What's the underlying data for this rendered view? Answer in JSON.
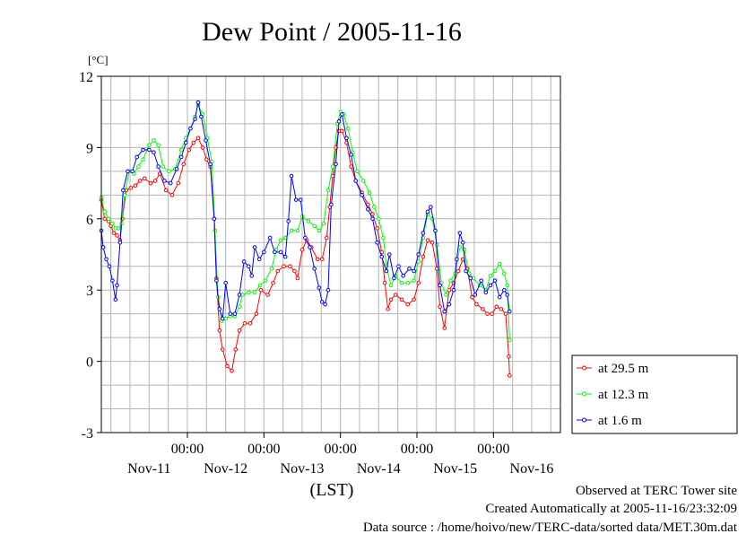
{
  "chart_data": {
    "type": "line",
    "title": "Dew Point / 2005-11-16",
    "ylabel": "[°C]",
    "xlabel": "(LST)",
    "ylim": [
      -3,
      12
    ],
    "yticks": [
      "12",
      "9",
      "6",
      "3",
      "0",
      "-3"
    ],
    "xtime_labels": [
      "00:00",
      "00:00",
      "00:00",
      "00:00",
      "00:00"
    ],
    "xday_labels": [
      "Nov-11",
      "Nov-12",
      "Nov-13",
      "Nov-14",
      "Nov-15",
      "Nov-16"
    ],
    "x_unit": "day offset from Nov-11 00:00 LST",
    "xlim": [
      -0.125,
      5.875
    ],
    "grid": true,
    "legend_position": "bottom-right, outside plot",
    "series": [
      {
        "name": "at 29.5 m",
        "color": "#ff0000",
        "points": [
          [
            -0.125,
            6.8
          ],
          [
            -0.08,
            6.0
          ],
          [
            -0.03,
            5.9
          ],
          [
            0.0,
            5.7
          ],
          [
            0.04,
            5.4
          ],
          [
            0.08,
            5.3
          ],
          [
            0.12,
            5.1
          ],
          [
            0.15,
            6.0
          ],
          [
            0.2,
            7.2
          ],
          [
            0.26,
            7.3
          ],
          [
            0.32,
            7.4
          ],
          [
            0.38,
            7.6
          ],
          [
            0.44,
            7.7
          ],
          [
            0.52,
            7.5
          ],
          [
            0.58,
            7.6
          ],
          [
            0.64,
            7.9
          ],
          [
            0.72,
            7.2
          ],
          [
            0.8,
            7.0
          ],
          [
            0.88,
            7.5
          ],
          [
            0.95,
            8.3
          ],
          [
            1.02,
            8.9
          ],
          [
            1.08,
            9.2
          ],
          [
            1.14,
            9.4
          ],
          [
            1.2,
            9.0
          ],
          [
            1.25,
            8.5
          ],
          [
            1.3,
            8.2
          ],
          [
            1.35,
            6.0
          ],
          [
            1.38,
            3.5
          ],
          [
            1.42,
            1.3
          ],
          [
            1.46,
            0.5
          ],
          [
            1.52,
            -0.2
          ],
          [
            1.58,
            -0.4
          ],
          [
            1.63,
            0.5
          ],
          [
            1.68,
            1.3
          ],
          [
            1.75,
            1.6
          ],
          [
            1.82,
            1.6
          ],
          [
            1.9,
            2.0
          ],
          [
            1.96,
            3.0
          ],
          [
            2.05,
            2.8
          ],
          [
            2.12,
            3.3
          ],
          [
            2.18,
            3.8
          ],
          [
            2.26,
            4.0
          ],
          [
            2.34,
            4.0
          ],
          [
            2.4,
            3.8
          ],
          [
            2.44,
            3.5
          ],
          [
            2.5,
            4.7
          ],
          [
            2.56,
            5.1
          ],
          [
            2.62,
            4.8
          ],
          [
            2.7,
            4.3
          ],
          [
            2.76,
            4.3
          ],
          [
            2.82,
            5.2
          ],
          [
            2.86,
            6.5
          ],
          [
            2.9,
            7.8
          ],
          [
            2.94,
            9.0
          ],
          [
            2.98,
            9.7
          ],
          [
            3.02,
            9.7
          ],
          [
            3.08,
            9.2
          ],
          [
            3.14,
            8.2
          ],
          [
            3.2,
            7.6
          ],
          [
            3.28,
            7.1
          ],
          [
            3.36,
            6.6
          ],
          [
            3.42,
            6.2
          ],
          [
            3.48,
            5.6
          ],
          [
            3.54,
            4.6
          ],
          [
            3.58,
            3.3
          ],
          [
            3.62,
            2.2
          ],
          [
            3.66,
            2.6
          ],
          [
            3.72,
            2.8
          ],
          [
            3.8,
            2.6
          ],
          [
            3.88,
            2.4
          ],
          [
            3.96,
            2.6
          ],
          [
            4.02,
            3.3
          ],
          [
            4.08,
            4.4
          ],
          [
            4.14,
            5.1
          ],
          [
            4.2,
            5.0
          ],
          [
            4.26,
            3.9
          ],
          [
            4.3,
            2.3
          ],
          [
            4.36,
            1.4
          ],
          [
            4.42,
            3.0
          ],
          [
            4.48,
            3.3
          ],
          [
            4.54,
            3.8
          ],
          [
            4.6,
            4.3
          ],
          [
            4.66,
            3.9
          ],
          [
            4.72,
            2.7
          ],
          [
            4.78,
            2.4
          ],
          [
            4.86,
            2.2
          ],
          [
            4.92,
            2.0
          ],
          [
            4.98,
            2.0
          ],
          [
            5.04,
            2.3
          ],
          [
            5.1,
            2.2
          ],
          [
            5.16,
            2.0
          ],
          [
            5.2,
            0.2
          ],
          [
            5.21,
            -0.6
          ]
        ]
      },
      {
        "name": "at 12.3 m",
        "color": "#00ff00",
        "points": [
          [
            -0.125,
            6.9
          ],
          [
            -0.08,
            6.3
          ],
          [
            -0.03,
            6.0
          ],
          [
            0.02,
            5.8
          ],
          [
            0.06,
            5.6
          ],
          [
            0.1,
            5.6
          ],
          [
            0.14,
            5.8
          ],
          [
            0.18,
            7.0
          ],
          [
            0.24,
            8.0
          ],
          [
            0.3,
            7.9
          ],
          [
            0.36,
            8.2
          ],
          [
            0.42,
            8.5
          ],
          [
            0.5,
            9.1
          ],
          [
            0.56,
            9.3
          ],
          [
            0.62,
            9.1
          ],
          [
            0.68,
            8.2
          ],
          [
            0.76,
            8.0
          ],
          [
            0.84,
            8.1
          ],
          [
            0.92,
            8.9
          ],
          [
            0.98,
            9.4
          ],
          [
            1.04,
            9.8
          ],
          [
            1.1,
            10.3
          ],
          [
            1.14,
            10.8
          ],
          [
            1.2,
            10.4
          ],
          [
            1.26,
            9.4
          ],
          [
            1.32,
            8.4
          ],
          [
            1.36,
            5.5
          ],
          [
            1.4,
            2.7
          ],
          [
            1.45,
            1.7
          ],
          [
            1.5,
            1.8
          ],
          [
            1.56,
            1.9
          ],
          [
            1.62,
            1.9
          ],
          [
            1.68,
            2.3
          ],
          [
            1.72,
            2.8
          ],
          [
            1.8,
            2.9
          ],
          [
            1.88,
            2.9
          ],
          [
            1.95,
            3.2
          ],
          [
            2.02,
            3.4
          ],
          [
            2.1,
            3.9
          ],
          [
            2.16,
            4.7
          ],
          [
            2.22,
            5.1
          ],
          [
            2.28,
            5.2
          ],
          [
            2.36,
            5.5
          ],
          [
            2.44,
            5.5
          ],
          [
            2.5,
            6.1
          ],
          [
            2.58,
            5.9
          ],
          [
            2.66,
            5.7
          ],
          [
            2.72,
            5.5
          ],
          [
            2.78,
            5.8
          ],
          [
            2.84,
            7.2
          ],
          [
            2.9,
            8.2
          ],
          [
            2.96,
            10.0
          ],
          [
            3.0,
            10.5
          ],
          [
            3.04,
            10.4
          ],
          [
            3.1,
            9.8
          ],
          [
            3.16,
            8.8
          ],
          [
            3.22,
            8.0
          ],
          [
            3.3,
            7.6
          ],
          [
            3.38,
            7.1
          ],
          [
            3.44,
            6.5
          ],
          [
            3.5,
            6.0
          ],
          [
            3.56,
            5.2
          ],
          [
            3.6,
            4.0
          ],
          [
            3.66,
            3.2
          ],
          [
            3.72,
            3.6
          ],
          [
            3.8,
            3.3
          ],
          [
            3.88,
            3.3
          ],
          [
            3.96,
            3.4
          ],
          [
            4.02,
            4.2
          ],
          [
            4.08,
            5.2
          ],
          [
            4.14,
            6.2
          ],
          [
            4.2,
            6.0
          ],
          [
            4.26,
            4.9
          ],
          [
            4.32,
            3.3
          ],
          [
            4.38,
            2.8
          ],
          [
            4.44,
            3.4
          ],
          [
            4.5,
            3.7
          ],
          [
            4.56,
            4.8
          ],
          [
            4.62,
            4.7
          ],
          [
            4.68,
            3.7
          ],
          [
            4.74,
            3.5
          ],
          [
            4.82,
            3.2
          ],
          [
            4.9,
            3.0
          ],
          [
            4.96,
            3.6
          ],
          [
            5.02,
            3.8
          ],
          [
            5.08,
            4.1
          ],
          [
            5.14,
            3.7
          ],
          [
            5.18,
            3.2
          ],
          [
            5.21,
            0.9
          ]
        ]
      },
      {
        "name": "at 1.6 m",
        "color": "#0000ff",
        "points": [
          [
            -0.125,
            5.5
          ],
          [
            -0.1,
            4.8
          ],
          [
            -0.06,
            4.3
          ],
          [
            -0.02,
            4.0
          ],
          [
            0.02,
            3.4
          ],
          [
            0.06,
            2.6
          ],
          [
            0.08,
            3.2
          ],
          [
            0.12,
            5.0
          ],
          [
            0.16,
            7.2
          ],
          [
            0.22,
            8.0
          ],
          [
            0.28,
            8.0
          ],
          [
            0.34,
            8.6
          ],
          [
            0.42,
            8.9
          ],
          [
            0.5,
            8.9
          ],
          [
            0.56,
            8.8
          ],
          [
            0.62,
            8.2
          ],
          [
            0.7,
            7.6
          ],
          [
            0.78,
            7.5
          ],
          [
            0.86,
            8.1
          ],
          [
            0.92,
            8.6
          ],
          [
            0.98,
            9.2
          ],
          [
            1.04,
            9.8
          ],
          [
            1.1,
            10.2
          ],
          [
            1.14,
            10.9
          ],
          [
            1.18,
            10.3
          ],
          [
            1.24,
            9.3
          ],
          [
            1.3,
            8.3
          ],
          [
            1.35,
            6.0
          ],
          [
            1.38,
            3.4
          ],
          [
            1.42,
            2.2
          ],
          [
            1.46,
            1.8
          ],
          [
            1.5,
            3.3
          ],
          [
            1.56,
            2.0
          ],
          [
            1.62,
            2.0
          ],
          [
            1.68,
            2.8
          ],
          [
            1.74,
            4.2
          ],
          [
            1.8,
            4.0
          ],
          [
            1.84,
            3.6
          ],
          [
            1.88,
            4.8
          ],
          [
            1.94,
            4.3
          ],
          [
            2.0,
            4.6
          ],
          [
            2.08,
            5.2
          ],
          [
            2.14,
            4.6
          ],
          [
            2.22,
            4.6
          ],
          [
            2.28,
            4.4
          ],
          [
            2.32,
            5.9
          ],
          [
            2.36,
            7.8
          ],
          [
            2.42,
            6.8
          ],
          [
            2.48,
            6.8
          ],
          [
            2.54,
            5.2
          ],
          [
            2.6,
            4.8
          ],
          [
            2.66,
            3.9
          ],
          [
            2.72,
            3.1
          ],
          [
            2.76,
            2.5
          ],
          [
            2.8,
            2.4
          ],
          [
            2.84,
            3.0
          ],
          [
            2.88,
            6.6
          ],
          [
            2.94,
            8.3
          ],
          [
            2.98,
            10.1
          ],
          [
            3.02,
            10.4
          ],
          [
            3.08,
            9.4
          ],
          [
            3.14,
            8.7
          ],
          [
            3.2,
            7.6
          ],
          [
            3.28,
            7.0
          ],
          [
            3.36,
            6.4
          ],
          [
            3.42,
            6.0
          ],
          [
            3.48,
            5.0
          ],
          [
            3.54,
            4.4
          ],
          [
            3.6,
            3.8
          ],
          [
            3.64,
            4.5
          ],
          [
            3.7,
            3.5
          ],
          [
            3.76,
            4.0
          ],
          [
            3.82,
            3.6
          ],
          [
            3.9,
            3.9
          ],
          [
            3.96,
            3.8
          ],
          [
            4.02,
            4.5
          ],
          [
            4.08,
            5.4
          ],
          [
            4.14,
            6.3
          ],
          [
            4.18,
            6.5
          ],
          [
            4.24,
            5.5
          ],
          [
            4.3,
            3.2
          ],
          [
            4.36,
            2.1
          ],
          [
            4.42,
            2.4
          ],
          [
            4.48,
            3.0
          ],
          [
            4.52,
            4.3
          ],
          [
            4.56,
            5.4
          ],
          [
            4.6,
            5.0
          ],
          [
            4.64,
            3.8
          ],
          [
            4.7,
            3.5
          ],
          [
            4.76,
            2.8
          ],
          [
            4.84,
            3.4
          ],
          [
            4.9,
            2.9
          ],
          [
            4.96,
            3.2
          ],
          [
            5.02,
            3.4
          ],
          [
            5.08,
            2.7
          ],
          [
            5.14,
            3.0
          ],
          [
            5.18,
            2.8
          ],
          [
            5.21,
            2.1
          ]
        ]
      }
    ]
  },
  "footer": {
    "line1": "Observed at TERC Tower site",
    "line2": "Created Automatically at 2005-11-16/23:32:09",
    "line3": "Data source : /home/hoivo/new/TERC-data/sorted  data/MET.30m.dat"
  }
}
